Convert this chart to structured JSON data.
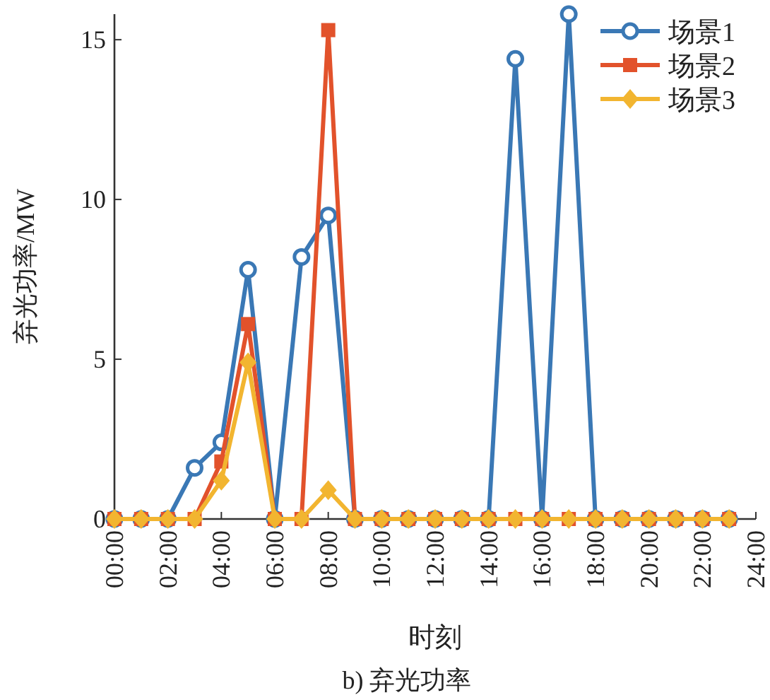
{
  "chart_data": {
    "type": "line",
    "xlabel": "时刻",
    "ylabel": "弃光功率/MW",
    "annotations": [
      "b) 弃光功率"
    ],
    "x": [
      0,
      1,
      2,
      3,
      4,
      5,
      6,
      7,
      8,
      9,
      10,
      11,
      12,
      13,
      14,
      15,
      16,
      17,
      18,
      19,
      20,
      21,
      22,
      23
    ],
    "series": [
      {
        "name": "场景1",
        "color": "#3a78b5",
        "marker": "circle",
        "values": [
          0,
          0,
          0,
          1.6,
          2.4,
          7.8,
          0,
          8.2,
          9.5,
          0,
          0,
          0,
          0,
          0,
          0,
          14.4,
          0,
          15.8,
          0,
          0,
          0,
          0,
          0,
          0
        ]
      },
      {
        "name": "场景2",
        "color": "#e2522b",
        "marker": "square",
        "values": [
          0,
          0,
          0,
          0,
          1.8,
          6.1,
          0,
          0,
          15.3,
          0,
          0,
          0,
          0,
          0,
          0,
          0,
          0,
          0,
          0,
          0,
          0,
          0,
          0,
          0
        ]
      },
      {
        "name": "场景3",
        "color": "#f2b530",
        "marker": "diamond",
        "values": [
          0,
          0,
          0,
          0,
          1.2,
          4.9,
          0,
          0,
          0.9,
          0,
          0,
          0,
          0,
          0,
          0,
          0,
          0,
          0,
          0,
          0,
          0,
          0,
          0,
          0
        ]
      }
    ],
    "xlim": [
      0,
      24
    ],
    "xticks": [
      {
        "value": 0,
        "label": "00:00"
      },
      {
        "value": 2,
        "label": "02:00"
      },
      {
        "value": 4,
        "label": "04:00"
      },
      {
        "value": 6,
        "label": "06:00"
      },
      {
        "value": 8,
        "label": "08:00"
      },
      {
        "value": 10,
        "label": "10:00"
      },
      {
        "value": 12,
        "label": "12:00"
      },
      {
        "value": 14,
        "label": "14:00"
      },
      {
        "value": 16,
        "label": "16:00"
      },
      {
        "value": 18,
        "label": "18:00"
      },
      {
        "value": 20,
        "label": "20:00"
      },
      {
        "value": 22,
        "label": "22:00"
      },
      {
        "value": 24,
        "label": "24:00"
      }
    ],
    "ylim": [
      0,
      15.8
    ],
    "yticks": [
      0,
      5,
      10,
      15
    ],
    "grid": false,
    "legend": "top right",
    "line_style": "solid"
  }
}
